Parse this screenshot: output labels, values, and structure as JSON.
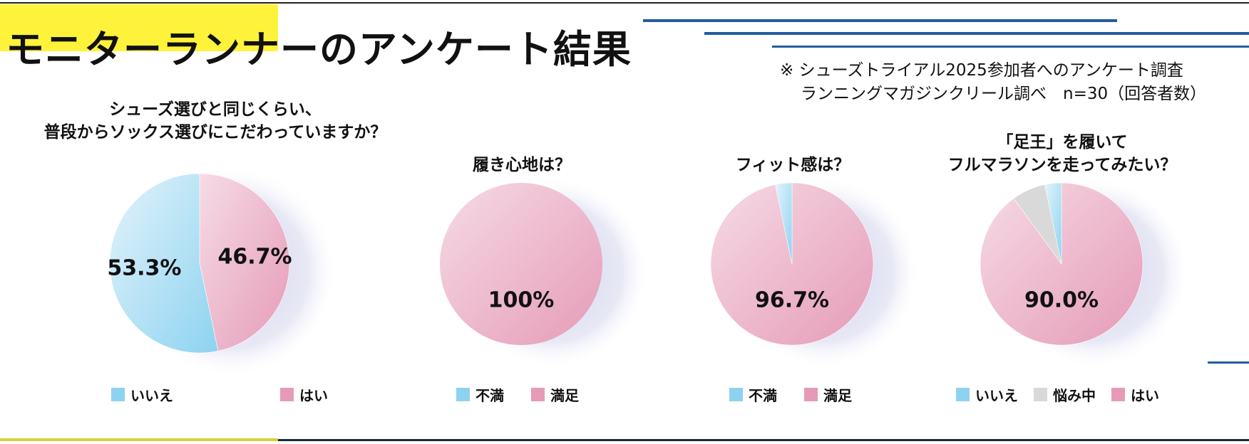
{
  "title": "モニターランナーのアンケート結果",
  "note": {
    "line1": "※ シューズトライアル2025参加者へのアンケート調査",
    "line2": "ランニングマガジンクリール調べ　n=30（回答者数）"
  },
  "colors": {
    "yes_satisfied": "#e59bb7",
    "no_dissatisfied": "#8dd3f0",
    "undecided": "#d9d9d9",
    "accent_yellow": "#fff23a",
    "accent_blue": "#1f5d9e"
  },
  "chart_data": [
    {
      "type": "pie",
      "title_lines": [
        "シューズ選びと同じくらい、",
        "普段からソックス選びにこだわっていますか？"
      ],
      "slices": [
        {
          "label": "はい",
          "value": 46.7,
          "color": "#e59bb7",
          "display": "46.7%"
        },
        {
          "label": "いいえ",
          "value": 53.3,
          "color": "#8dd3f0",
          "display": "53.3%"
        }
      ],
      "legend": [
        {
          "label": "いいえ",
          "color": "#8dd3f0"
        },
        {
          "label": "はい",
          "color": "#e59bb7"
        }
      ]
    },
    {
      "type": "pie",
      "title_lines": [
        "履き心地は？"
      ],
      "slices": [
        {
          "label": "満足",
          "value": 100,
          "color": "#e59bb7",
          "display": "100%"
        }
      ],
      "legend": [
        {
          "label": "不満",
          "color": "#8dd3f0"
        },
        {
          "label": "満足",
          "color": "#e59bb7"
        }
      ]
    },
    {
      "type": "pie",
      "title_lines": [
        "フィット感は？"
      ],
      "slices": [
        {
          "label": "満足",
          "value": 96.7,
          "color": "#e59bb7",
          "display": "96.7%"
        },
        {
          "label": "不満",
          "value": 3.3,
          "color": "#8dd3f0",
          "display": ""
        }
      ],
      "legend": [
        {
          "label": "不満",
          "color": "#8dd3f0"
        },
        {
          "label": "満足",
          "color": "#e59bb7"
        }
      ]
    },
    {
      "type": "pie",
      "title_lines": [
        "「足王」を履いて",
        "フルマラソンを走ってみたい？"
      ],
      "slices": [
        {
          "label": "はい",
          "value": 90.0,
          "color": "#e59bb7",
          "display": "90.0%"
        },
        {
          "label": "悩み中",
          "value": 6.7,
          "color": "#d9d9d9",
          "display": ""
        },
        {
          "label": "いいえ",
          "value": 3.3,
          "color": "#8dd3f0",
          "display": ""
        }
      ],
      "legend": [
        {
          "label": "いいえ",
          "color": "#8dd3f0"
        },
        {
          "label": "悩み中",
          "color": "#d9d9d9"
        },
        {
          "label": "はい",
          "color": "#e59bb7"
        }
      ]
    }
  ]
}
